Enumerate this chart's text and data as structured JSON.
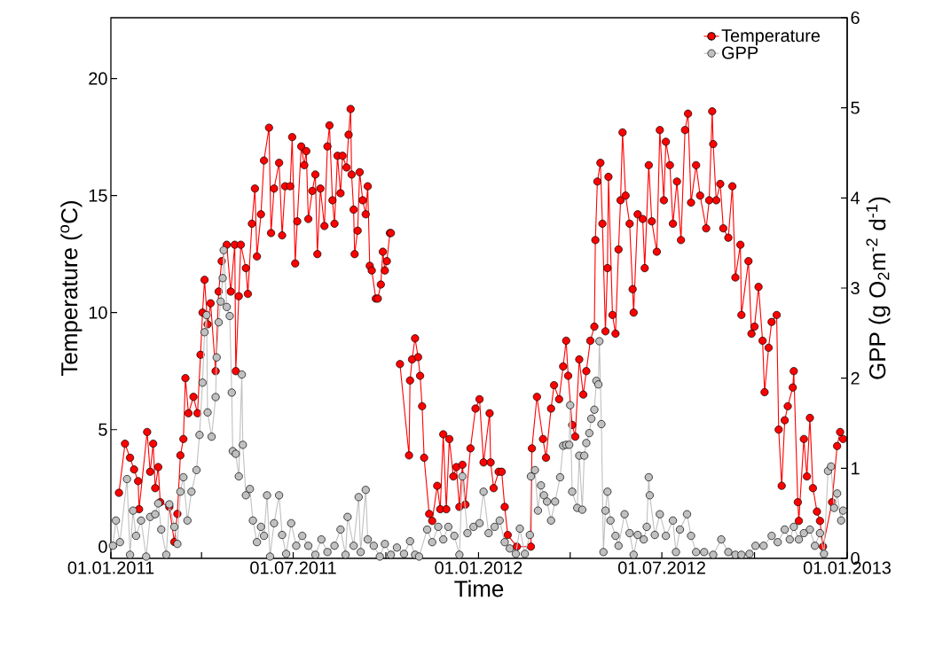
{
  "chart_data": {
    "type": "line",
    "xlabel": "Time",
    "ylabel": "Temperature ($^{o}$C)",
    "y2label": "GPP (g O$_{2}$m$^{-2}$ d$^{-1}$)",
    "xlim": [
      "2011-01-01",
      "2013-01-01"
    ],
    "xticks": [
      {
        "value": "2011-01-01",
        "label": "01.01.2011"
      },
      {
        "value": "2011-04-01",
        "label": null
      },
      {
        "value": "2011-07-01",
        "label": "01.07.2011"
      },
      {
        "value": "2011-10-01",
        "label": null
      },
      {
        "value": "2012-01-01",
        "label": "01.01.2012"
      },
      {
        "value": "2012-04-01",
        "label": null
      },
      {
        "value": "2012-07-01",
        "label": "01.07.2012"
      },
      {
        "value": "2012-10-01",
        "label": null
      },
      {
        "value": "2013-01-01",
        "label": "01.01.2013"
      }
    ],
    "ylim": [
      -0.5,
      22.6
    ],
    "yticks": [
      0,
      5,
      10,
      15,
      20
    ],
    "y2lim": [
      0,
      6
    ],
    "y2ticks": [
      0,
      1,
      2,
      3,
      4,
      5,
      6
    ],
    "legend": "top right",
    "marker": "circle",
    "line_style": "solid",
    "series": [
      {
        "name": "Temperature",
        "color": "#ff0000",
        "x": [
          "2011-01-09",
          "2011-01-15",
          "2011-01-20",
          "2011-01-24",
          "2011-01-28",
          "2011-01-29",
          "2011-02-06",
          "2011-02-09",
          "2011-02-12",
          "2011-02-14",
          "2011-02-17",
          "2011-02-19",
          "2011-02-28",
          "2011-03-05",
          "2011-03-08",
          "2011-03-11",
          "2011-03-14",
          "2011-03-16",
          "2011-03-19",
          "2011-03-24",
          "2011-03-28",
          "2011-03-31",
          "2011-04-02",
          "2011-04-04",
          "2011-04-07",
          "2011-04-10",
          "2011-04-15",
          "2011-04-18",
          "2011-04-21",
          "2011-04-26",
          "2011-04-30",
          "2011-05-04",
          "2011-05-05",
          "2011-05-08",
          "2011-05-10",
          "2011-05-15",
          "2011-05-17",
          "2011-05-21",
          "2011-05-24",
          "2011-05-26",
          "2011-05-30",
          "2011-06-02",
          "2011-06-07",
          "2011-06-09",
          "2011-06-12",
          "2011-06-17",
          "2011-06-20",
          "2011-06-23",
          "2011-06-28",
          "2011-06-30",
          "2011-07-03",
          "2011-07-05",
          "2011-07-09",
          "2011-07-12",
          "2011-07-14",
          "2011-07-16",
          "2011-07-20",
          "2011-07-23",
          "2011-07-25",
          "2011-07-28",
          "2011-08-01",
          "2011-08-04",
          "2011-08-06",
          "2011-08-09",
          "2011-08-11",
          "2011-08-14",
          "2011-08-17",
          "2011-08-19",
          "2011-08-23",
          "2011-08-25",
          "2011-08-27",
          "2011-08-28",
          "2011-08-30",
          "2011-08-31",
          "2011-09-03",
          "2011-09-05",
          "2011-09-08",
          "2011-09-11",
          "2011-09-13",
          "2011-09-15",
          "2011-09-17",
          "2011-09-21",
          "2011-09-23",
          "2011-09-26",
          "2011-09-28",
          "2011-09-30",
          "2011-10-02",
          "2011-10-05",
          "2011-10-06",
          "2011-10-10",
          "2011-10-15",
          "2011-10-24",
          "2011-10-25",
          "2011-10-27",
          "2011-10-30",
          "2011-11-02",
          "2011-11-04",
          "2011-11-06",
          "2011-11-08",
          "2011-11-13",
          "2011-11-16",
          "2011-11-21",
          "2011-11-24",
          "2011-11-27",
          "2011-11-30",
          "2011-12-03",
          "2011-12-07",
          "2011-12-10",
          "2011-12-13",
          "2011-12-16",
          "2011-12-19",
          "2011-12-24",
          "2011-12-29",
          "2012-01-02",
          "2012-01-06",
          "2012-01-12",
          "2012-01-13",
          "2012-01-16",
          "2012-01-21",
          "2012-01-24",
          "2012-01-27",
          "2012-01-30",
          "2012-02-08",
          "2012-02-22",
          "2012-02-23",
          "2012-02-28",
          "2012-03-05",
          "2012-03-08",
          "2012-03-13",
          "2012-03-16",
          "2012-03-21",
          "2012-03-25",
          "2012-03-28",
          "2012-03-30",
          "2012-04-03",
          "2012-04-06",
          "2012-04-10",
          "2012-04-14",
          "2012-04-17",
          "2012-04-21",
          "2012-04-25",
          "2012-04-26",
          "2012-04-28",
          "2012-05-01",
          "2012-05-03",
          "2012-05-06",
          "2012-05-08",
          "2012-05-09",
          "2012-05-13",
          "2012-05-16",
          "2012-05-19",
          "2012-05-21",
          "2012-05-23",
          "2012-05-26",
          "2012-05-30",
          "2012-06-02",
          "2012-06-03",
          "2012-06-07",
          "2012-06-12",
          "2012-06-14",
          "2012-06-18",
          "2012-06-21",
          "2012-06-26",
          "2012-06-29",
          "2012-07-03",
          "2012-07-05",
          "2012-07-09",
          "2012-07-12",
          "2012-07-16",
          "2012-07-20",
          "2012-07-24",
          "2012-07-27",
          "2012-07-30",
          "2012-08-04",
          "2012-08-08",
          "2012-08-14",
          "2012-08-17",
          "2012-08-20",
          "2012-08-21",
          "2012-08-24",
          "2012-08-28",
          "2012-08-31",
          "2012-09-05",
          "2012-09-09",
          "2012-09-12",
          "2012-09-17",
          "2012-09-18",
          "2012-09-25",
          "2012-09-28",
          "2012-10-01",
          "2012-10-05",
          "2012-10-09",
          "2012-10-11",
          "2012-10-15",
          "2012-10-18",
          "2012-10-23",
          "2012-10-25",
          "2012-10-28",
          "2012-10-31",
          "2012-11-03",
          "2012-11-08",
          "2012-11-09",
          "2012-11-13",
          "2012-11-14",
          "2012-11-19",
          "2012-11-22",
          "2012-11-25",
          "2012-11-28",
          "2012-12-02",
          "2012-12-05",
          "2012-12-08",
          "2012-12-17",
          "2012-12-22",
          "2012-12-25",
          "2012-12-28"
        ],
        "values": [
          2.3,
          4.4,
          3.8,
          3.3,
          2.8,
          1.6,
          4.9,
          3.2,
          4.4,
          2.5,
          3.4,
          1.9,
          1.7,
          0.2,
          1.4,
          3.9,
          4.6,
          7.2,
          5.7,
          6.4,
          5.7,
          8.2,
          10.0,
          11.4,
          9.5,
          10.4,
          7.5,
          10.9,
          12.2,
          12.9,
          10.9,
          12.9,
          7.5,
          10.7,
          12.9,
          11.9,
          10.8,
          13.8,
          15.3,
          12.4,
          14.2,
          16.5,
          17.9,
          13.4,
          15.3,
          16.4,
          13.3,
          15.4,
          15.4,
          17.5,
          12.1,
          13.9,
          17.1,
          16.3,
          16.9,
          14.0,
          15.2,
          15.9,
          12.5,
          15.3,
          13.7,
          17.1,
          18.0,
          14.8,
          13.8,
          16.7,
          15.1,
          16.7,
          16.2,
          17.6,
          18.7,
          15.9,
          14.4,
          12.5,
          13.5,
          16.0,
          14.8,
          14.2,
          15.4,
          12.0,
          11.8,
          10.6,
          10.6,
          11.2,
          12.6,
          11.8,
          12.2,
          13.4,
          13.4,
          null,
          7.8,
          3.9,
          7.1,
          8.0,
          8.9,
          8.1,
          7.3,
          6.0,
          3.8,
          1.4,
          1.1,
          2.6,
          1.6,
          4.8,
          1.6,
          4.6,
          3.0,
          3.4,
          1.7,
          3.5,
          1.8,
          4.2,
          5.9,
          6.3,
          3.6,
          5.7,
          3.6,
          2.5,
          3.2,
          3.2,
          1.7,
          0.5,
          0.0,
          0.0,
          4.2,
          6.4,
          4.6,
          3.8,
          5.9,
          6.9,
          6.3,
          7.7,
          8.8,
          7.3,
          5.2,
          4.7,
          8.0,
          6.5,
          7.5,
          8.8,
          9.4,
          13.1,
          15.6,
          16.4,
          13.8,
          9.2,
          11.9,
          15.8,
          9.9,
          9.1,
          12.7,
          14.8,
          17.7,
          15.0,
          13.8,
          11.0,
          10.0,
          14.2,
          14.0,
          11.9,
          16.3,
          13.9,
          12.6,
          17.8,
          14.8,
          17.3,
          16.3,
          13.8,
          15.6,
          13.1,
          17.8,
          18.5,
          14.7,
          16.3,
          15.0,
          13.6,
          14.8,
          18.6,
          17.2,
          14.8,
          15.5,
          13.6,
          13.2,
          15.4,
          11.5,
          12.9,
          9.9,
          12.2,
          9.1,
          9.4,
          11.1,
          8.8,
          6.6,
          8.5,
          9.6,
          9.9,
          5.0,
          2.6,
          5.4,
          6.0,
          6.8,
          7.5,
          1.9,
          1.1,
          4.6,
          3.0,
          5.5,
          2.5,
          1.5,
          1.1,
          0.0,
          1.9,
          4.3,
          4.9,
          4.6
        ]
      },
      {
        "name": "GPP",
        "color": "#c0c0c0",
        "axis": "y2",
        "x": [
          "2011-01-03",
          "2011-01-06",
          "2011-01-10",
          "2011-01-17",
          "2011-01-20",
          "2011-01-23",
          "2011-01-26",
          "2011-01-31",
          "2011-02-05",
          "2011-02-09",
          "2011-02-14",
          "2011-02-17",
          "2011-02-20",
          "2011-02-25",
          "2011-02-28",
          "2011-03-05",
          "2011-03-08",
          "2011-03-11",
          "2011-03-14",
          "2011-03-18",
          "2011-03-22",
          "2011-03-27",
          "2011-03-30",
          "2011-04-02",
          "2011-04-04",
          "2011-04-06",
          "2011-04-07",
          "2011-04-11",
          "2011-04-15",
          "2011-04-16",
          "2011-04-18",
          "2011-04-20",
          "2011-04-22",
          "2011-04-23",
          "2011-04-26",
          "2011-04-29",
          "2011-05-01",
          "2011-05-02",
          "2011-05-05",
          "2011-05-08",
          "2011-05-11",
          "2011-05-12",
          "2011-05-15",
          "2011-05-19",
          "2011-05-22",
          "2011-05-26",
          "2011-05-30",
          "2011-06-02",
          "2011-06-05",
          "2011-06-08",
          "2011-06-12",
          "2011-06-17",
          "2011-06-20",
          "2011-06-24",
          "2011-06-29",
          "2011-07-04",
          "2011-07-10",
          "2011-07-16",
          "2011-07-23",
          "2011-07-29",
          "2011-08-04",
          "2011-08-11",
          "2011-08-17",
          "2011-08-22",
          "2011-08-24",
          "2011-08-30",
          "2011-09-04",
          "2011-09-06",
          "2011-09-11",
          "2011-09-13",
          "2011-09-19",
          "2011-09-25",
          "2011-09-30",
          "2011-10-06",
          "2011-10-12",
          "2011-10-19",
          "2011-10-25",
          "2011-10-30",
          "2011-11-03",
          "2011-11-11",
          "2011-11-16",
          "2011-11-22",
          "2011-11-27",
          "2011-12-02",
          "2011-12-08",
          "2011-12-13",
          "2011-12-16",
          "2011-12-21",
          "2011-12-27",
          "2012-01-02",
          "2012-01-06",
          "2012-01-11",
          "2012-01-17",
          "2012-01-22",
          "2012-01-27",
          "2012-02-01",
          "2012-02-07",
          "2012-02-11",
          "2012-02-16",
          "2012-02-21",
          "2012-02-22",
          "2012-02-26",
          "2012-02-29",
          "2012-03-03",
          "2012-03-06",
          "2012-03-09",
          "2012-03-13",
          "2012-03-17",
          "2012-03-22",
          "2012-03-25",
          "2012-03-28",
          "2012-03-31",
          "2012-04-01",
          "2012-04-03",
          "2012-04-08",
          "2012-04-10",
          "2012-04-13",
          "2012-04-15",
          "2012-04-17",
          "2012-04-20",
          "2012-04-22",
          "2012-04-25",
          "2012-04-27",
          "2012-04-29",
          "2012-04-30",
          "2012-05-02",
          "2012-05-04",
          "2012-05-06",
          "2012-05-08",
          "2012-05-11",
          "2012-05-16",
          "2012-05-19",
          "2012-05-25",
          "2012-05-30",
          "2012-06-03",
          "2012-06-07",
          "2012-06-13",
          "2012-06-16",
          "2012-06-18",
          "2012-06-19",
          "2012-06-24",
          "2012-06-29",
          "2012-07-05",
          "2012-07-12",
          "2012-07-15",
          "2012-07-19",
          "2012-07-26",
          "2012-07-30",
          "2012-08-04",
          "2012-08-12",
          "2012-08-21",
          "2012-08-29",
          "2012-09-05",
          "2012-09-12",
          "2012-09-18",
          "2012-09-26",
          "2012-10-02",
          "2012-10-10",
          "2012-10-18",
          "2012-10-24",
          "2012-10-31",
          "2012-11-05",
          "2012-11-09",
          "2012-11-14",
          "2012-11-19",
          "2012-11-25",
          "2012-11-30",
          "2012-12-05",
          "2012-12-09",
          "2012-12-13",
          "2012-12-16",
          "2012-12-19",
          "2012-12-22",
          "2012-12-26",
          "2012-12-28"
        ],
        "values": [
          0.14,
          0.42,
          0.18,
          0.88,
          0.04,
          0.53,
          0.25,
          0.42,
          0.02,
          0.46,
          0.49,
          0.61,
          0.32,
          0.04,
          0.6,
          0.35,
          0.16,
          0.74,
          0.9,
          0.42,
          0.74,
          0.98,
          1.37,
          1.95,
          2.51,
          2.7,
          1.62,
          1.35,
          1.79,
          2.23,
          2.62,
          2.85,
          3.11,
          3.42,
          2.79,
          2.69,
          1.84,
          1.19,
          1.16,
          0.91,
          2.04,
          1.26,
          0.7,
          0.77,
          0.42,
          0.18,
          0.35,
          0.25,
          0.7,
          0.02,
          0.39,
          0.7,
          0.26,
          0.05,
          0.39,
          0.14,
          0.25,
          0.14,
          0.04,
          0.21,
          0.07,
          0.14,
          0.32,
          0.04,
          0.46,
          0.14,
          0.68,
          0.07,
          0.76,
          0.21,
          0.14,
          0.02,
          0.16,
          0.04,
          0.12,
          0.05,
          0.19,
          0.04,
          0.02,
          0.32,
          0.18,
          0.35,
          0.21,
          0.35,
          0.25,
          0.04,
          0.91,
          0.28,
          0.35,
          0.39,
          0.74,
          0.28,
          0.35,
          0.42,
          0.18,
          0.11,
          0.05,
          0.33,
          0.05,
          0.26,
          0.91,
          0.98,
          0.53,
          0.81,
          0.7,
          0.63,
          0.42,
          0.63,
          0.9,
          1.25,
          1.26,
          1.26,
          1.7,
          0.74,
          0.56,
          1.14,
          0.54,
          1.14,
          1.28,
          1.39,
          1.55,
          1.65,
          1.97,
          1.93,
          2.41,
          1.49,
          0.07,
          0.53,
          0.74,
          0.42,
          0.25,
          0.14,
          0.49,
          0.28,
          0.04,
          0.26,
          0.21,
          0.35,
          0.9,
          0.7,
          0.26,
          0.49,
          0.25,
          0.42,
          0.07,
          0.32,
          0.49,
          0.25,
          0.07,
          0.07,
          0.04,
          0.21,
          0.07,
          0.04,
          0.04,
          0.05,
          0.14,
          0.14,
          0.25,
          0.18,
          0.32,
          0.21,
          0.35,
          0.21,
          0.28,
          0.32,
          0.14,
          0.28,
          0.05,
          0.97,
          1.02,
          0.56,
          0.72,
          0.42,
          0.53
        ]
      }
    ]
  }
}
